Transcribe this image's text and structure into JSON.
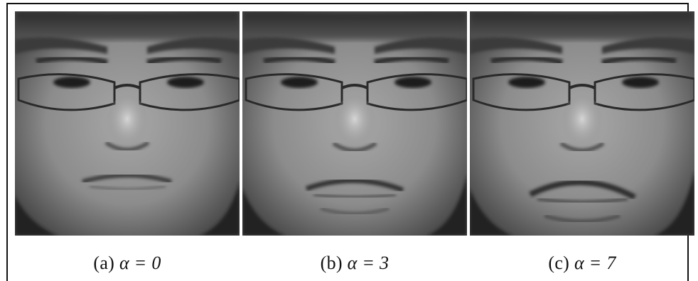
{
  "panels": [
    {
      "caption_label": "(a)",
      "caption_expr": "α = 0",
      "alpha": 0,
      "face_image": "grayscale-face-with-glasses-neutral"
    },
    {
      "caption_label": "(b)",
      "caption_expr": "α = 3",
      "alpha": 3,
      "face_image": "grayscale-face-with-glasses-mild-frown"
    },
    {
      "caption_label": "(c)",
      "caption_expr": "α = 7",
      "alpha": 7,
      "face_image": "grayscale-face-with-glasses-strong-frown"
    }
  ]
}
